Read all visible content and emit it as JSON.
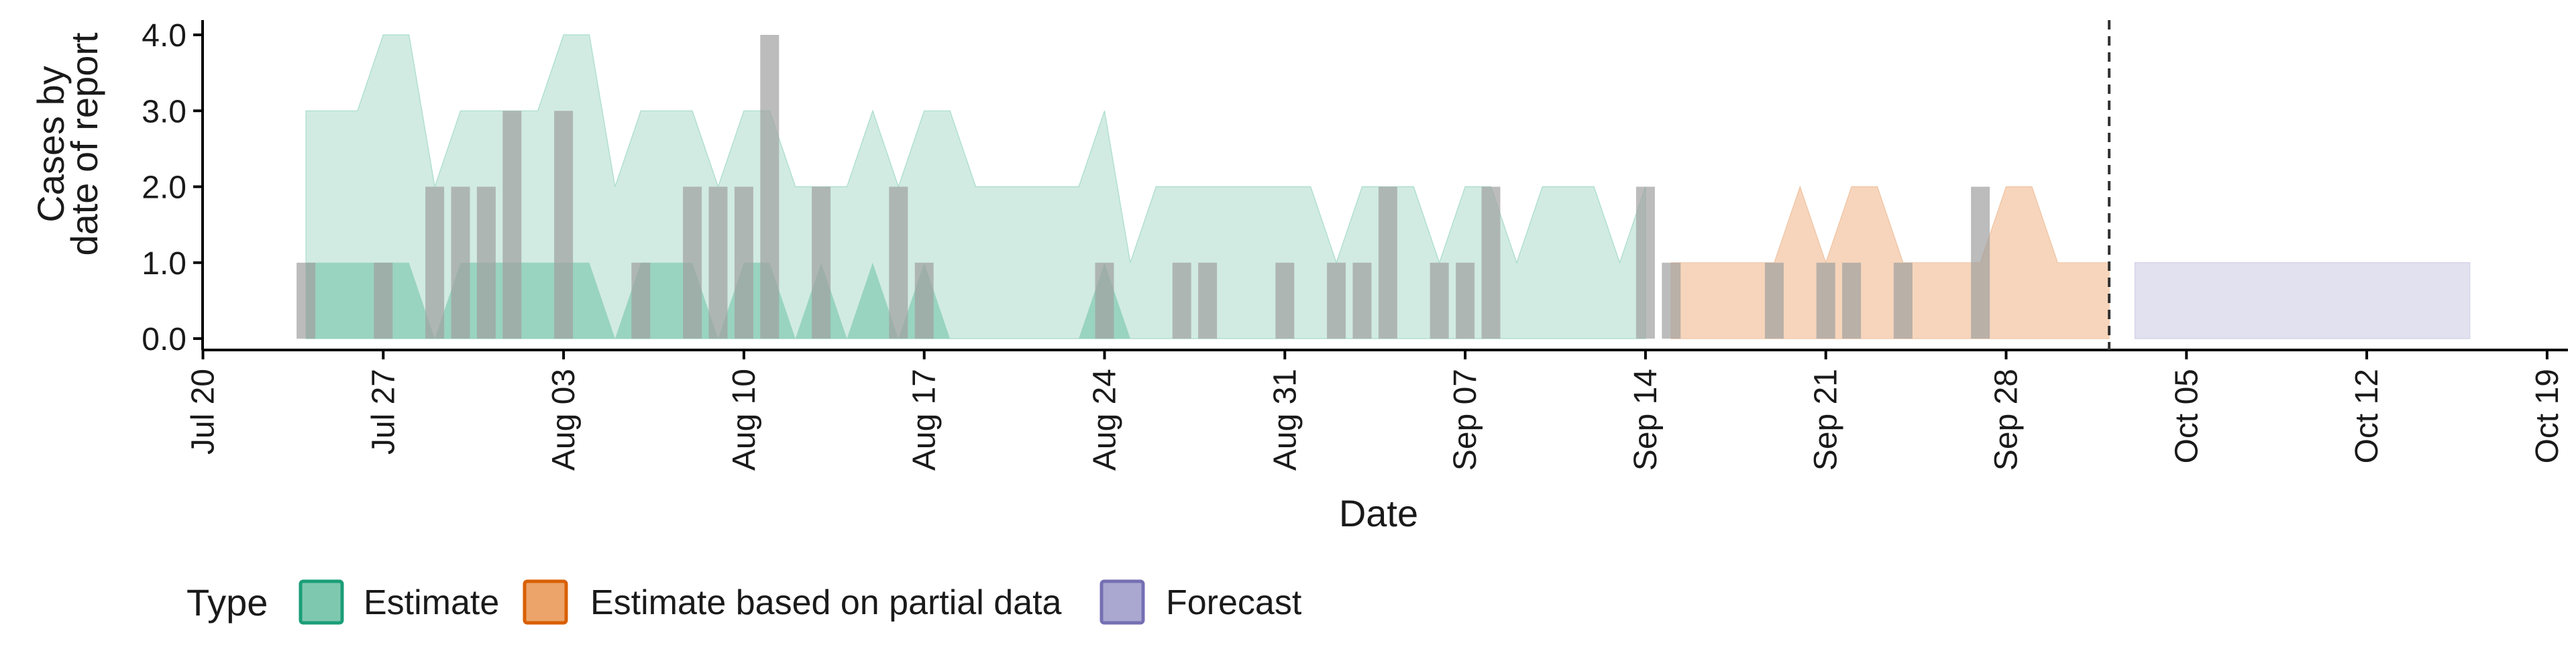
{
  "chart_data": {
    "type": "bar",
    "xlabel": "Date",
    "ylabel_lines": [
      "Cases by",
      "date of report"
    ],
    "y_ticks": [
      "0.0",
      "1.0",
      "2.0",
      "3.0",
      "4.0"
    ],
    "ylim": [
      0,
      4.2
    ],
    "xlim": [
      "2020-07-19",
      "2020-10-20"
    ],
    "x_ticks": [
      {
        "date": "2020-07-20",
        "label": "Jul 20"
      },
      {
        "date": "2020-07-27",
        "label": "Jul 27"
      },
      {
        "date": "2020-08-03",
        "label": "Aug 03"
      },
      {
        "date": "2020-08-10",
        "label": "Aug 10"
      },
      {
        "date": "2020-08-17",
        "label": "Aug 17"
      },
      {
        "date": "2020-08-24",
        "label": "Aug 24"
      },
      {
        "date": "2020-08-31",
        "label": "Aug 31"
      },
      {
        "date": "2020-09-07",
        "label": "Sep 07"
      },
      {
        "date": "2020-09-14",
        "label": "Sep 14"
      },
      {
        "date": "2020-09-21",
        "label": "Sep 21"
      },
      {
        "date": "2020-09-28",
        "label": "Sep 28"
      },
      {
        "date": "2020-10-05",
        "label": "Oct 05"
      },
      {
        "date": "2020-10-12",
        "label": "Oct 12"
      },
      {
        "date": "2020-10-19",
        "label": "Oct 19"
      }
    ],
    "reported_cases": [
      {
        "date": "2020-07-24",
        "value": 1
      },
      {
        "date": "2020-07-27",
        "value": 1
      },
      {
        "date": "2020-07-29",
        "value": 2
      },
      {
        "date": "2020-07-30",
        "value": 2
      },
      {
        "date": "2020-07-31",
        "value": 2
      },
      {
        "date": "2020-08-01",
        "value": 3
      },
      {
        "date": "2020-08-03",
        "value": 3
      },
      {
        "date": "2020-08-06",
        "value": 1
      },
      {
        "date": "2020-08-08",
        "value": 2
      },
      {
        "date": "2020-08-09",
        "value": 2
      },
      {
        "date": "2020-08-10",
        "value": 2
      },
      {
        "date": "2020-08-11",
        "value": 4
      },
      {
        "date": "2020-08-13",
        "value": 2
      },
      {
        "date": "2020-08-16",
        "value": 2
      },
      {
        "date": "2020-08-17",
        "value": 1
      },
      {
        "date": "2020-08-24",
        "value": 1
      },
      {
        "date": "2020-08-27",
        "value": 1
      },
      {
        "date": "2020-08-28",
        "value": 1
      },
      {
        "date": "2020-08-31",
        "value": 1
      },
      {
        "date": "2020-09-02",
        "value": 1
      },
      {
        "date": "2020-09-03",
        "value": 1
      },
      {
        "date": "2020-09-04",
        "value": 2
      },
      {
        "date": "2020-09-06",
        "value": 1
      },
      {
        "date": "2020-09-07",
        "value": 1
      },
      {
        "date": "2020-09-08",
        "value": 2
      },
      {
        "date": "2020-09-14",
        "value": 2
      },
      {
        "date": "2020-09-15",
        "value": 1
      },
      {
        "date": "2020-09-19",
        "value": 1
      },
      {
        "date": "2020-09-21",
        "value": 1
      },
      {
        "date": "2020-09-22",
        "value": 1
      },
      {
        "date": "2020-09-24",
        "value": 1
      },
      {
        "date": "2020-09-27",
        "value": 2
      }
    ],
    "estimate_outer_upper": [
      [
        "2020-07-24",
        3
      ],
      [
        "2020-07-26",
        3
      ],
      [
        "2020-07-27",
        4
      ],
      [
        "2020-07-28",
        4
      ],
      [
        "2020-07-29",
        2
      ],
      [
        "2020-07-30",
        3
      ],
      [
        "2020-08-01",
        3
      ],
      [
        "2020-08-02",
        3
      ],
      [
        "2020-08-03",
        4
      ],
      [
        "2020-08-04",
        4
      ],
      [
        "2020-08-05",
        2
      ],
      [
        "2020-08-06",
        3
      ],
      [
        "2020-08-08",
        3
      ],
      [
        "2020-08-09",
        2
      ],
      [
        "2020-08-10",
        3
      ],
      [
        "2020-08-11",
        3
      ],
      [
        "2020-08-12",
        2
      ],
      [
        "2020-08-14",
        2
      ],
      [
        "2020-08-15",
        3
      ],
      [
        "2020-08-16",
        2
      ],
      [
        "2020-08-17",
        3
      ],
      [
        "2020-08-18",
        3
      ],
      [
        "2020-08-19",
        2
      ],
      [
        "2020-08-23",
        2
      ],
      [
        "2020-08-24",
        3
      ],
      [
        "2020-08-25",
        1
      ],
      [
        "2020-08-26",
        2
      ],
      [
        "2020-08-30",
        2
      ],
      [
        "2020-08-31",
        2
      ],
      [
        "2020-09-01",
        2
      ],
      [
        "2020-09-02",
        1
      ],
      [
        "2020-09-03",
        2
      ],
      [
        "2020-09-04",
        2
      ],
      [
        "2020-09-05",
        2
      ],
      [
        "2020-09-06",
        1
      ],
      [
        "2020-09-07",
        2
      ],
      [
        "2020-09-08",
        2
      ],
      [
        "2020-09-09",
        1
      ],
      [
        "2020-09-10",
        2
      ],
      [
        "2020-09-12",
        2
      ],
      [
        "2020-09-13",
        1
      ],
      [
        "2020-09-14",
        2
      ]
    ],
    "estimate_outer_lower": [
      0,
      0
    ],
    "estimate_inner_upper": [
      [
        "2020-07-24",
        1
      ],
      [
        "2020-07-28",
        1
      ],
      [
        "2020-07-29",
        0
      ],
      [
        "2020-07-30",
        1
      ],
      [
        "2020-08-04",
        1
      ],
      [
        "2020-08-05",
        0
      ],
      [
        "2020-08-06",
        1
      ],
      [
        "2020-08-08",
        1
      ],
      [
        "2020-08-09",
        0
      ],
      [
        "2020-08-10",
        1
      ],
      [
        "2020-08-11",
        1
      ],
      [
        "2020-08-12",
        0
      ],
      [
        "2020-08-13",
        1
      ],
      [
        "2020-08-14",
        0
      ],
      [
        "2020-08-15",
        1
      ],
      [
        "2020-08-16",
        0
      ],
      [
        "2020-08-17",
        1
      ],
      [
        "2020-08-18",
        0
      ],
      [
        "2020-08-23",
        0
      ],
      [
        "2020-08-24",
        1
      ],
      [
        "2020-08-25",
        0
      ]
    ],
    "partial_outer_upper": [
      [
        "2020-09-15",
        1
      ],
      [
        "2020-09-19",
        1
      ],
      [
        "2020-09-20",
        2
      ],
      [
        "2020-09-21",
        1
      ],
      [
        "2020-09-22",
        2
      ],
      [
        "2020-09-23",
        2
      ],
      [
        "2020-09-24",
        1
      ],
      [
        "2020-09-27",
        1
      ],
      [
        "2020-09-28",
        2
      ],
      [
        "2020-09-29",
        2
      ],
      [
        "2020-09-30",
        1
      ],
      [
        "2020-10-02",
        1
      ]
    ],
    "partial_inner_upper": [
      [
        "2020-09-15",
        1
      ],
      [
        "2020-10-02",
        1
      ]
    ],
    "forecast_band": {
      "start": "2020-10-03",
      "end": "2020-10-16",
      "lower": 0,
      "upper": 1
    },
    "forecast_start_line": "2020-10-02",
    "legend": {
      "placement": "bottom-left",
      "title": "Type",
      "items": [
        {
          "label": "Estimate",
          "fill": "#7fc8b0",
          "stroke": "#1b9e77"
        },
        {
          "label": "Estimate based on partial data",
          "fill": "#eca46a",
          "stroke": "#d95f02"
        },
        {
          "label": "Forecast",
          "fill": "#aaa8d1",
          "stroke": "#7570b3"
        }
      ]
    },
    "colors": {
      "estimate_outer": "#d1ebe2",
      "estimate_inner": "#8fd0ba",
      "partial_outer": "#f6d5bc",
      "partial_inner": "#f6d5bc",
      "forecast": "#e1e1ef",
      "bar": "#a0a0a0",
      "axis": "#000000",
      "vline": "#333333"
    }
  }
}
